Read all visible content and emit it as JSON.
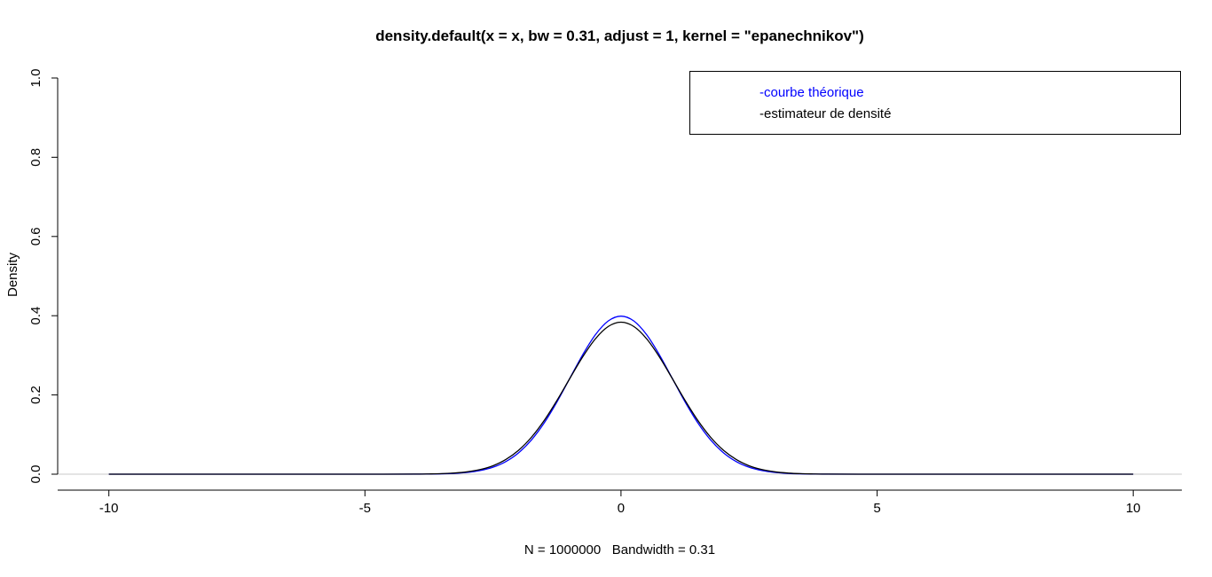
{
  "chart_data": {
    "type": "line",
    "title": "density.default(x = x, bw = 0.31, adjust = 1, kernel = \"epanechnikov\")",
    "xlabel": "N = 1000000   Bandwidth = 0.31",
    "ylabel": "Density",
    "xlim": [
      -11,
      10.95
    ],
    "ylim": [
      -0.0403,
      1.0
    ],
    "grid": false,
    "background": "#ffffff",
    "axis_color": "#000000",
    "x_ticks": {
      "values": [
        -10,
        -5,
        0,
        5,
        10
      ],
      "labels": [
        "-10",
        "-5",
        "0",
        "5",
        "10"
      ]
    },
    "y_ticks": {
      "values": [
        0.0,
        0.2,
        0.4,
        0.6,
        0.8,
        1.0
      ],
      "labels": [
        "0.0",
        "0.2",
        "0.4",
        "0.6",
        "0.8",
        "1.0"
      ]
    },
    "reference_line": {
      "y": 0,
      "color": "#c8c8c8"
    },
    "legend": {
      "position": "top-right",
      "items": [
        {
          "label": "-courbe théorique",
          "color": "#0000ff"
        },
        {
          "label": "-estimateur de densité",
          "color": "#000000"
        }
      ]
    },
    "x": [
      -10,
      -8,
      -6,
      -5,
      -4,
      -3.75,
      -3.5,
      -3.25,
      -3,
      -2.75,
      -2.5,
      -2.25,
      -2,
      -1.75,
      -1.5,
      -1.25,
      -1,
      -0.75,
      -0.5,
      -0.25,
      0,
      0.25,
      0.5,
      0.75,
      1,
      1.25,
      1.5,
      1.75,
      2,
      2.25,
      2.5,
      2.75,
      3,
      3.25,
      3.5,
      3.75,
      4,
      5,
      6,
      8,
      10
    ],
    "series": [
      {
        "name": "courbe théorique",
        "color": "#0000ff",
        "y": [
          0,
          0,
          0,
          0,
          0.0001,
          0.0004,
          0.0009,
          0.002,
          0.0044,
          0.0091,
          0.0175,
          0.0317,
          0.054,
          0.0863,
          0.1295,
          0.1826,
          0.242,
          0.3011,
          0.3521,
          0.3867,
          0.3989,
          0.3867,
          0.3521,
          0.3011,
          0.242,
          0.1826,
          0.1295,
          0.0863,
          0.054,
          0.0317,
          0.0175,
          0.0091,
          0.0044,
          0.002,
          0.0009,
          0.0004,
          0.0001,
          0,
          0,
          0,
          0
        ]
      },
      {
        "name": "estimateur de densité",
        "color": "#000000",
        "y": [
          0,
          0,
          0,
          0,
          0.0002,
          0.0006,
          0.0013,
          0.0029,
          0.006,
          0.0116,
          0.0213,
          0.037,
          0.0604,
          0.0931,
          0.1356,
          0.1863,
          0.2416,
          0.2958,
          0.3417,
          0.3727,
          0.3836,
          0.3727,
          0.3417,
          0.2958,
          0.2416,
          0.1863,
          0.1356,
          0.0931,
          0.0604,
          0.037,
          0.0213,
          0.0116,
          0.006,
          0.0029,
          0.0013,
          0.0006,
          0.0002,
          0,
          0,
          0,
          0
        ]
      }
    ]
  }
}
